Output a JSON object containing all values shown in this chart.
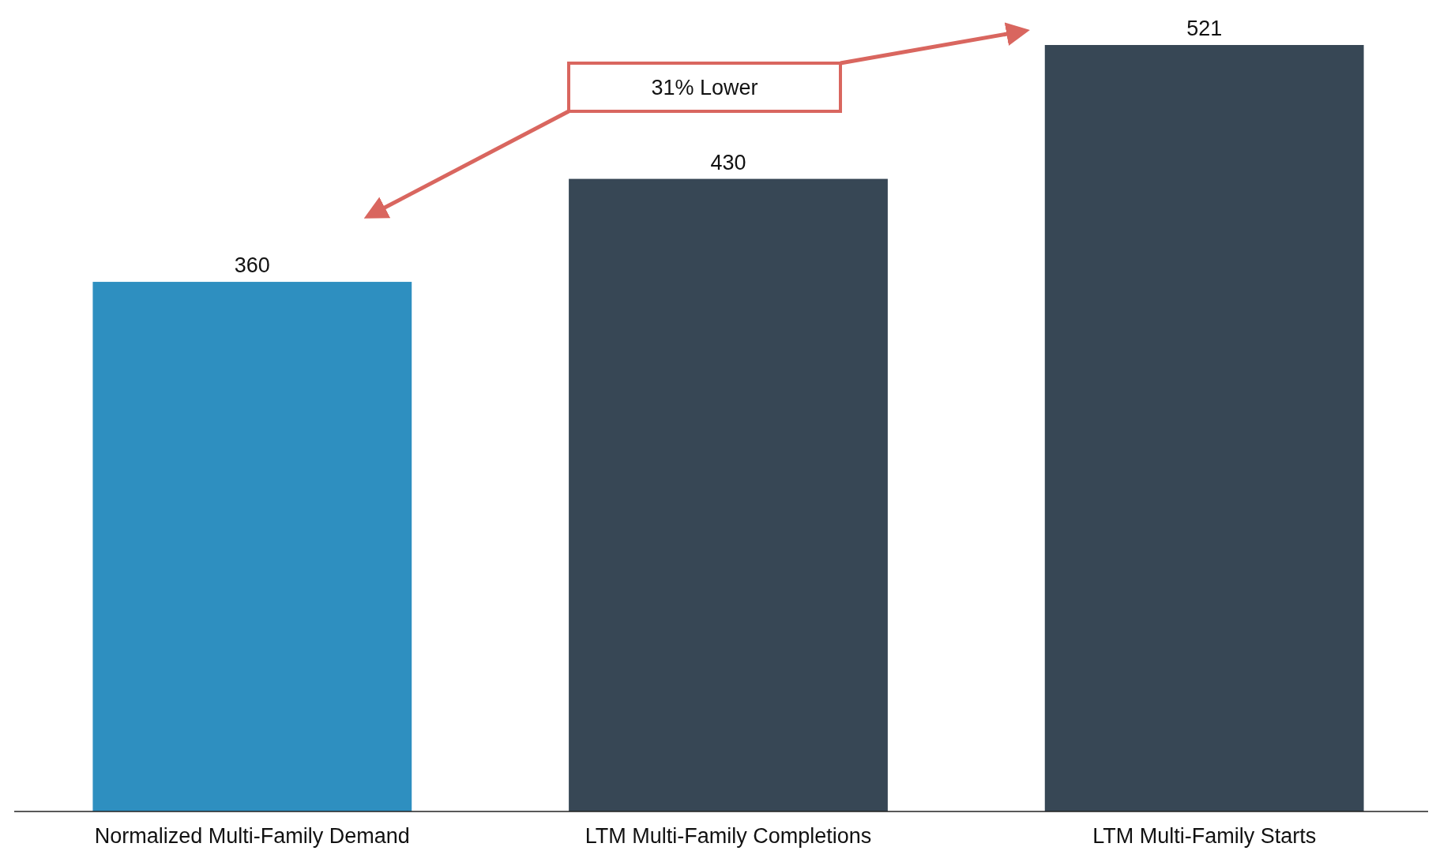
{
  "chart_data": {
    "type": "bar",
    "categories": [
      "Normalized Multi-Family Demand",
      "LTM Multi-Family Completions",
      "LTM Multi-Family Starts"
    ],
    "values": [
      360,
      430,
      521
    ],
    "colors": [
      "#2e8fc0",
      "#374755",
      "#374755"
    ],
    "data_labels": true,
    "annotations": [
      "31% Lower"
    ]
  }
}
